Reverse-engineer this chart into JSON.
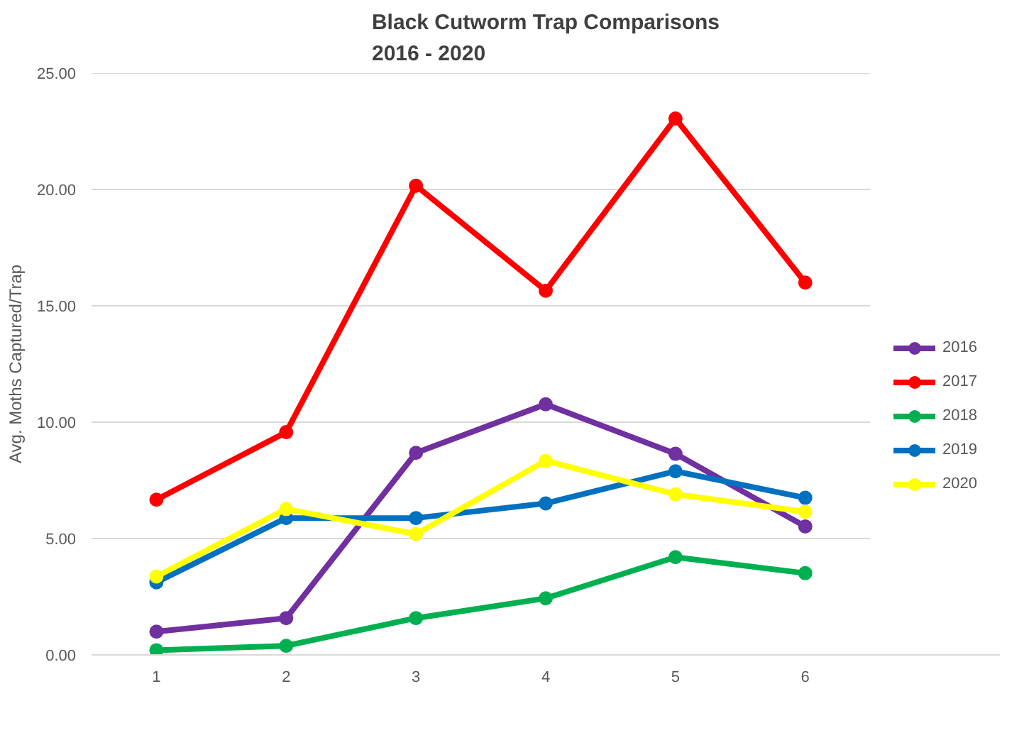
{
  "chart_data": {
    "type": "line",
    "title": "Black Cutworm Trap Comparisons\n2016 - 2020",
    "ylabel": "Avg. Moths Captured/Trap",
    "categories": [
      "1",
      "2",
      "3",
      "4",
      "5",
      "6"
    ],
    "series": [
      {
        "name": "2016",
        "color": "#7030a0",
        "values": [
          1.0,
          1.58,
          8.68,
          10.77,
          8.64,
          5.52
        ]
      },
      {
        "name": "2017",
        "color": "#ff0000",
        "values": [
          6.67,
          9.57,
          20.16,
          15.65,
          23.05,
          16.0
        ]
      },
      {
        "name": "2018",
        "color": "#00b050",
        "values": [
          0.2,
          0.39,
          1.58,
          2.43,
          4.2,
          3.51
        ]
      },
      {
        "name": "2019",
        "color": "#0070c0",
        "values": [
          3.12,
          5.88,
          5.88,
          6.51,
          7.89,
          6.75
        ]
      },
      {
        "name": "2020",
        "color": "#ffff00",
        "values": [
          3.37,
          6.27,
          5.19,
          8.34,
          6.9,
          6.15
        ]
      }
    ],
    "ylim": [
      0,
      25
    ],
    "yticks": [
      {
        "value": 0,
        "label": "0.00"
      },
      {
        "value": 5,
        "label": "5.00"
      },
      {
        "value": 10,
        "label": "10.00"
      },
      {
        "value": 15,
        "label": "15.00"
      },
      {
        "value": 20,
        "label": "20.00"
      },
      {
        "value": 25,
        "label": "25.00"
      }
    ],
    "grid": "y",
    "legend": "right",
    "marker": "circle",
    "line_style": "solid"
  }
}
